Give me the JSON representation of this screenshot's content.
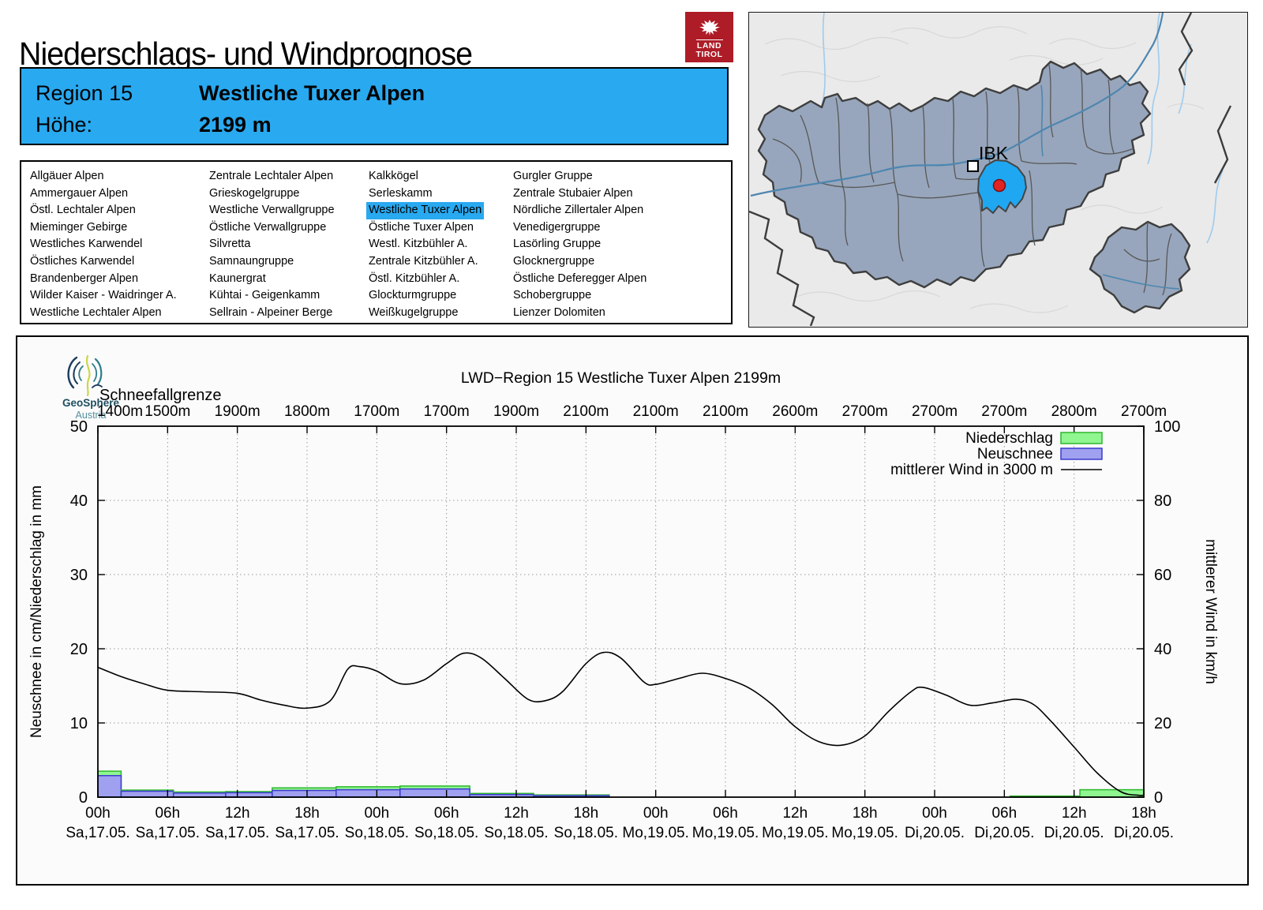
{
  "page": {
    "title": "Niederschlags- und Windprognose"
  },
  "brand": {
    "line1": "LAND",
    "line2": "TIROL"
  },
  "region_header": {
    "region_label": "Region 15",
    "region_name": "Westliche Tuxer Alpen",
    "altitude_label": "Höhe:",
    "altitude_value": "2199 m"
  },
  "region_list": {
    "selected": "Westliche Tuxer Alpen",
    "columns": [
      [
        "Allgäuer Alpen",
        "Ammergauer Alpen",
        "Östl. Lechtaler Alpen",
        "Mieminger Gebirge",
        "Westliches Karwendel",
        "Östliches Karwendel",
        "Brandenberger Alpen",
        "Wilder Kaiser - Waidringer A.",
        "Westliche Lechtaler Alpen"
      ],
      [
        "Zentrale Lechtaler Alpen",
        "Grieskogelgruppe",
        "Westliche Verwallgruppe",
        "Östliche Verwallgruppe",
        "Silvretta",
        "Samnaungruppe",
        "Kaunergrat",
        "Kühtai - Geigenkamm",
        "Sellrain - Alpeiner Berge"
      ],
      [
        "Kalkkögel",
        "Serleskamm",
        "Westliche Tuxer Alpen",
        "Östliche Tuxer Alpen",
        "Westl. Kitzbühler A.",
        "Zentrale Kitzbühler A.",
        "Östl. Kitzbühler A.",
        "Glockturmgruppe",
        "Weißkugelgruppe"
      ],
      [
        "Gurgler Gruppe",
        "Zentrale Stubaier Alpen",
        "Nördliche Zillertaler Alpen",
        "Venedigergruppe",
        "Lasörling Gruppe",
        "Glocknergruppe",
        "Östliche Deferegger Alpen",
        "Schobergruppe",
        "Lienzer Dolomiten"
      ]
    ]
  },
  "map": {
    "city_label": "IBK",
    "highlight_color": "#1fa7f2",
    "marker_color": "#e02424"
  },
  "source": {
    "name_line1": "GeoSphere",
    "name_line2": "Austria"
  },
  "chart_data": {
    "type": "bar",
    "title": "LWD−Region 15 Westliche Tuxer Alpen 2199m",
    "ylabel_left": "Neuschnee in cm/Niederschlag in mm",
    "ylabel_right": "mittlerer Wind in km/h",
    "ylim_left": [
      0,
      50
    ],
    "yticks_left": [
      0,
      10,
      20,
      30,
      40,
      50
    ],
    "ylim_right": [
      0,
      100
    ],
    "yticks_right": [
      0,
      20,
      40,
      60,
      80,
      100
    ],
    "x_hours_total": 90,
    "x_ticks": [
      {
        "hour": 0,
        "time": "00h",
        "date": "Sa,17.05."
      },
      {
        "hour": 6,
        "time": "06h",
        "date": "Sa,17.05."
      },
      {
        "hour": 12,
        "time": "12h",
        "date": "Sa,17.05."
      },
      {
        "hour": 18,
        "time": "18h",
        "date": "Sa,17.05."
      },
      {
        "hour": 24,
        "time": "00h",
        "date": "So,18.05."
      },
      {
        "hour": 30,
        "time": "06h",
        "date": "So,18.05."
      },
      {
        "hour": 36,
        "time": "12h",
        "date": "So,18.05."
      },
      {
        "hour": 42,
        "time": "18h",
        "date": "So,18.05."
      },
      {
        "hour": 48,
        "time": "00h",
        "date": "Mo,19.05."
      },
      {
        "hour": 54,
        "time": "06h",
        "date": "Mo,19.05."
      },
      {
        "hour": 60,
        "time": "12h",
        "date": "Mo,19.05."
      },
      {
        "hour": 66,
        "time": "18h",
        "date": "Mo,19.05."
      },
      {
        "hour": 72,
        "time": "00h",
        "date": "Di,20.05."
      },
      {
        "hour": 78,
        "time": "06h",
        "date": "Di,20.05."
      },
      {
        "hour": 84,
        "time": "12h",
        "date": "Di,20.05."
      },
      {
        "hour": 90,
        "time": "18h",
        "date": "Di,20.05."
      }
    ],
    "snowline": {
      "label": "Schneefallgrenze",
      "values": [
        "1400m",
        "1500m",
        "1900m",
        "1800m",
        "1700m",
        "1700m",
        "1900m",
        "2100m",
        "2100m",
        "2100m",
        "2600m",
        "2700m",
        "2700m",
        "2700m",
        "2800m",
        "2700m"
      ]
    },
    "legend": [
      {
        "label": "Niederschlag",
        "type": "box",
        "fill": "#90f690",
        "stroke": "#2db82d"
      },
      {
        "label": "Neuschnee",
        "type": "box",
        "fill": "#a0a0f0",
        "stroke": "#3b3bcf"
      },
      {
        "label": "mittlerer Wind in 3000 m",
        "type": "line",
        "stroke": "#000000"
      }
    ],
    "bars": [
      {
        "h0": 0,
        "h1": 2,
        "niederschlag_mm": 3.5,
        "neuschnee_cm": 2.9
      },
      {
        "h0": 2,
        "h1": 6.5,
        "niederschlag_mm": 0.95,
        "neuschnee_cm": 0.8
      },
      {
        "h0": 6.5,
        "h1": 11,
        "niederschlag_mm": 0.7,
        "neuschnee_cm": 0.55
      },
      {
        "h0": 11,
        "h1": 15,
        "niederschlag_mm": 0.75,
        "neuschnee_cm": 0.6
      },
      {
        "h0": 15,
        "h1": 20.5,
        "niederschlag_mm": 1.25,
        "neuschnee_cm": 0.9
      },
      {
        "h0": 20.5,
        "h1": 26,
        "niederschlag_mm": 1.4,
        "neuschnee_cm": 1.0
      },
      {
        "h0": 26,
        "h1": 32,
        "niederschlag_mm": 1.5,
        "neuschnee_cm": 1.1
      },
      {
        "h0": 32,
        "h1": 37.5,
        "niederschlag_mm": 0.5,
        "neuschnee_cm": 0.35
      },
      {
        "h0": 37.5,
        "h1": 44,
        "niederschlag_mm": 0.3,
        "neuschnee_cm": 0.2
      },
      {
        "h0": 78.5,
        "h1": 84.5,
        "niederschlag_mm": 0.15,
        "neuschnee_cm": 0
      },
      {
        "h0": 84.5,
        "h1": 90,
        "niederschlag_mm": 1.0,
        "neuschnee_cm": 0
      }
    ],
    "wind_points": [
      [
        0,
        35
      ],
      [
        2,
        32.5
      ],
      [
        4,
        30.5
      ],
      [
        6,
        28.8
      ],
      [
        9,
        28.4
      ],
      [
        12,
        28.0
      ],
      [
        14,
        26.2
      ],
      [
        16,
        24.8
      ],
      [
        18,
        24.0
      ],
      [
        20,
        26.0
      ],
      [
        21.5,
        34.5
      ],
      [
        22.5,
        35.2
      ],
      [
        24,
        34.0
      ],
      [
        26,
        30.6
      ],
      [
        28,
        31.5
      ],
      [
        30,
        36.0
      ],
      [
        31.5,
        38.8
      ],
      [
        33,
        37.5
      ],
      [
        35,
        32.0
      ],
      [
        37,
        26.4
      ],
      [
        38.5,
        26.0
      ],
      [
        40,
        28.5
      ],
      [
        42,
        36.0
      ],
      [
        43.5,
        39.0
      ],
      [
        45,
        37.5
      ],
      [
        47,
        31.0
      ],
      [
        48,
        30.4
      ],
      [
        50,
        32.0
      ],
      [
        52,
        33.4
      ],
      [
        54,
        32.0
      ],
      [
        56,
        29.5
      ],
      [
        58,
        25.0
      ],
      [
        60,
        19.0
      ],
      [
        62,
        15.0
      ],
      [
        64,
        14.0
      ],
      [
        66,
        16.5
      ],
      [
        68,
        23.0
      ],
      [
        70,
        28.5
      ],
      [
        71,
        29.6
      ],
      [
        73,
        27.5
      ],
      [
        75,
        24.8
      ],
      [
        77,
        25.4
      ],
      [
        79,
        26.4
      ],
      [
        80.5,
        25.0
      ],
      [
        82,
        20.5
      ],
      [
        84,
        13.5
      ],
      [
        86,
        6.5
      ],
      [
        88,
        1.5
      ],
      [
        89.5,
        0.5
      ],
      [
        90,
        0.5
      ]
    ]
  }
}
